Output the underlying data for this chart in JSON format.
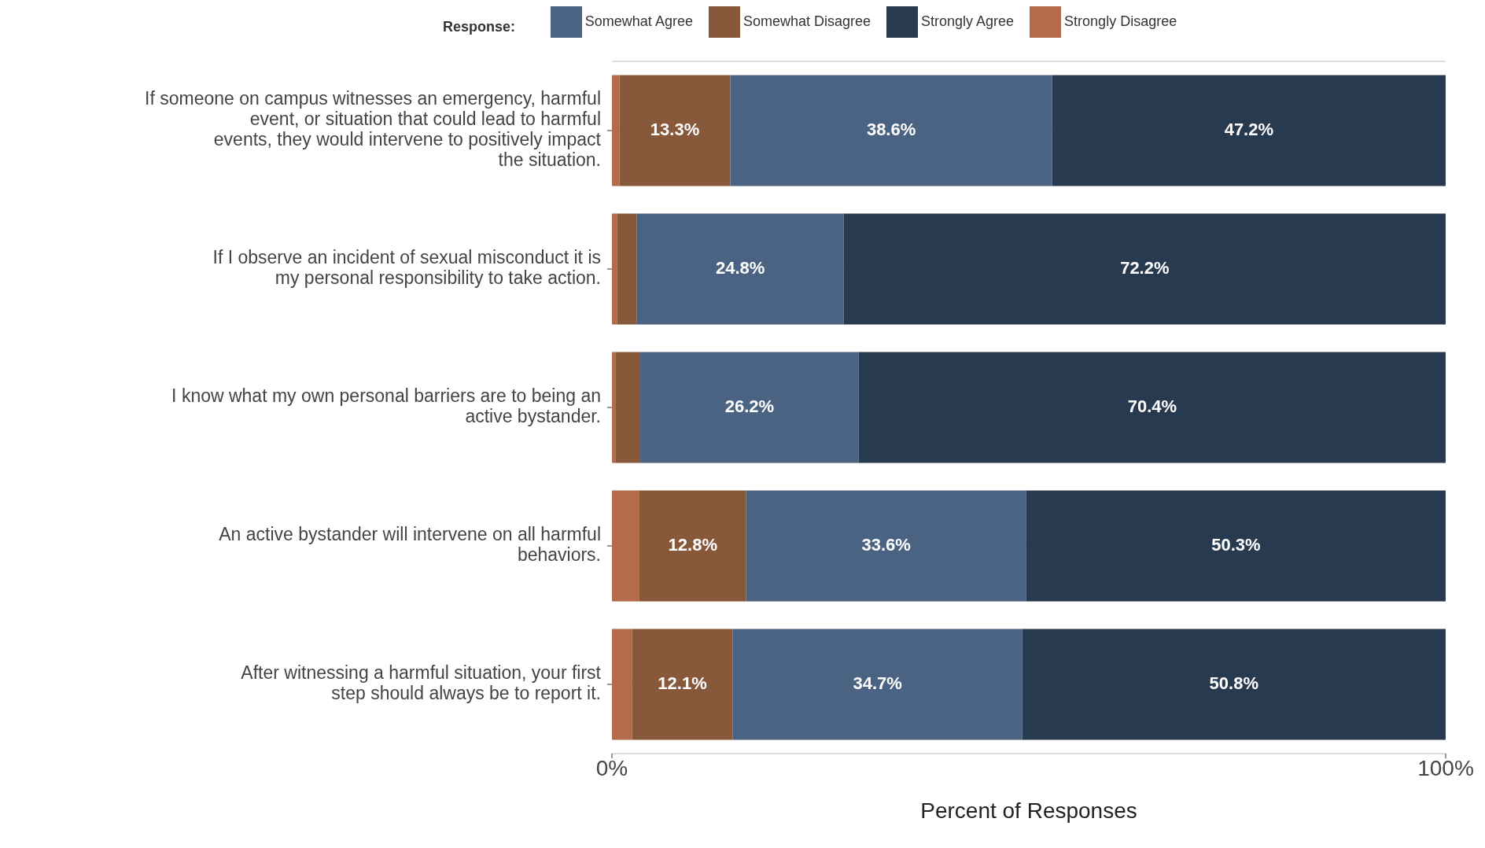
{
  "chart_data": {
    "type": "bar",
    "orientation": "horizontal",
    "stacked": true,
    "xlabel": "Percent of Responses",
    "legend_title": "Response:",
    "legend": "top",
    "grid": "y",
    "categories": [
      "If someone on campus witnesses an emergency, harmful event, or situation that could lead to harmful events, they would intervene to positively impact the situation.",
      "If I observe an incident of sexual misconduct it is my personal responsibility to take action.",
      "I know what my own personal barriers are to being an active bystander.",
      "An active bystander will intervene on all harmful behaviors.",
      "After witnessing a harmful situation, your first step should always be to report it."
    ],
    "xlim": [
      0,
      100
    ],
    "xticks": [
      {
        "value": 0,
        "label": "0%"
      },
      {
        "value": 100,
        "label": "100%"
      }
    ],
    "series": [
      {
        "name": "Strongly Disagree",
        "color": "#b36b4a",
        "values": [
          0.9,
          0.6,
          0.4,
          3.3,
          2.4
        ],
        "value_labels": [
          null,
          null,
          null,
          null,
          null
        ]
      },
      {
        "name": "Somewhat Disagree",
        "color": "#87583a",
        "values": [
          13.3,
          2.4,
          3.0,
          12.8,
          12.1
        ],
        "value_labels": [
          "13.3%",
          null,
          null,
          "12.8%",
          "12.1%"
        ]
      },
      {
        "name": "Somewhat Agree",
        "color": "#4a6382",
        "values": [
          38.6,
          24.8,
          26.2,
          33.6,
          34.7
        ],
        "value_labels": [
          "38.6%",
          "24.8%",
          "26.2%",
          "33.6%",
          "34.7%"
        ]
      },
      {
        "name": "Strongly Agree",
        "color": "#283a50",
        "values": [
          47.2,
          72.2,
          70.4,
          50.3,
          50.8
        ],
        "value_labels": [
          "47.2%",
          "72.2%",
          "70.4%",
          "50.3%",
          "50.8%"
        ]
      }
    ]
  }
}
